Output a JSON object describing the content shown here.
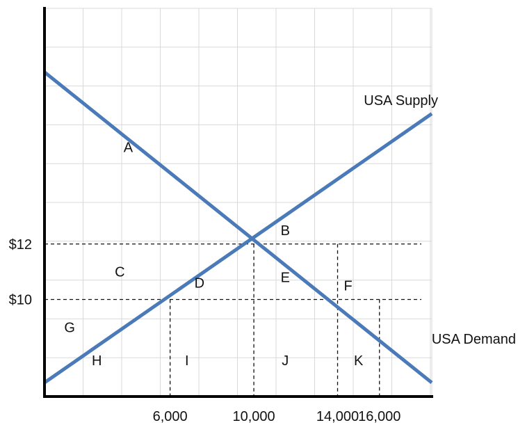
{
  "chart_data": {
    "type": "line",
    "title": "",
    "xlabel": "",
    "ylabel": "",
    "xlim": [
      0,
      18500
    ],
    "ylim": [
      6.5,
      20.5
    ],
    "grid": true,
    "x_ticks": [
      {
        "value": 6000,
        "label": "6,000"
      },
      {
        "value": 10000,
        "label": "10,000"
      },
      {
        "value": 14000,
        "label": "14,000"
      },
      {
        "value": 16000,
        "label": "16,000"
      }
    ],
    "y_ticks": [
      {
        "value": 12,
        "label": "$12"
      },
      {
        "value": 10,
        "label": "$10"
      }
    ],
    "series": [
      {
        "name": "USA Supply",
        "color": "#4a7ab8",
        "x": [
          0,
          18500
        ],
        "y": [
          7.0,
          16.7
        ]
      },
      {
        "name": "USA Demand",
        "color": "#4a7ab8",
        "x": [
          0,
          18500
        ],
        "y": [
          18.2,
          7.0
        ]
      }
    ],
    "reference_lines": [
      {
        "type": "horizontal",
        "y": 12,
        "x": [
          0,
          18000
        ]
      },
      {
        "type": "horizontal",
        "y": 10,
        "x": [
          0,
          18000
        ]
      },
      {
        "type": "vertical",
        "x": 6000,
        "y": [
          6.5,
          10
        ]
      },
      {
        "type": "vertical",
        "x": 10000,
        "y": [
          6.5,
          12
        ]
      },
      {
        "type": "vertical",
        "x": 14000,
        "y": [
          6.5,
          12
        ]
      },
      {
        "type": "vertical",
        "x": 16000,
        "y": [
          6.5,
          10
        ]
      }
    ],
    "region_labels": [
      {
        "label": "A",
        "x": 4000,
        "y": 15.5
      },
      {
        "label": "B",
        "x": 11500,
        "y": 12.5
      },
      {
        "label": "C",
        "x": 3600,
        "y": 11.0
      },
      {
        "label": "D",
        "x": 7400,
        "y": 10.6
      },
      {
        "label": "E",
        "x": 11500,
        "y": 10.8
      },
      {
        "label": "F",
        "x": 14500,
        "y": 10.5
      },
      {
        "label": "G",
        "x": 1200,
        "y": 9.0
      },
      {
        "label": "H",
        "x": 2500,
        "y": 7.8
      },
      {
        "label": "I",
        "x": 6800,
        "y": 7.8
      },
      {
        "label": "J",
        "x": 11500,
        "y": 7.8
      },
      {
        "label": "K",
        "x": 15000,
        "y": 7.8
      }
    ]
  }
}
